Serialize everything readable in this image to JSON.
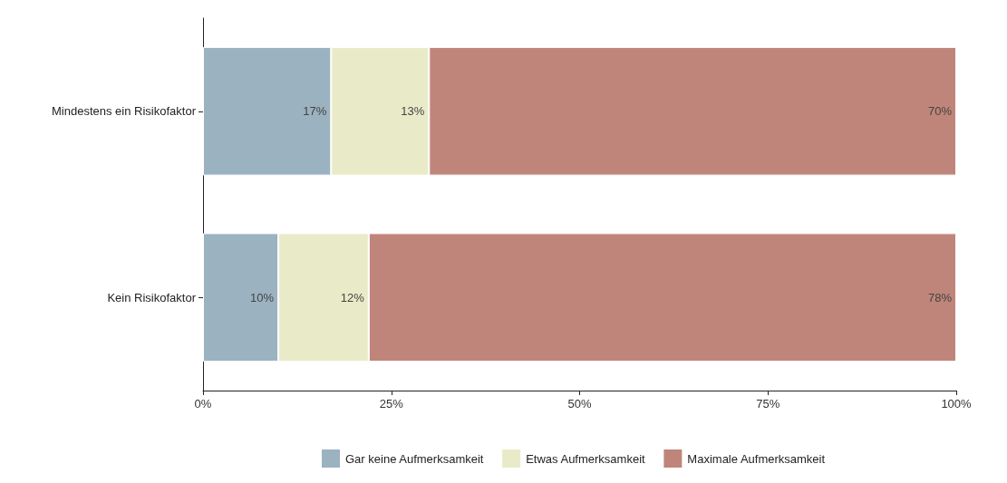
{
  "chart_data": {
    "type": "bar",
    "orientation": "horizontal",
    "stacked": true,
    "categories": [
      "Mindestens ein Risikofaktor",
      "Kein Risikofaktor"
    ],
    "series": [
      {
        "name": "Gar keine Aufmerksamkeit",
        "color": "#9bb2c0",
        "values": [
          17,
          10
        ],
        "value_labels": [
          "17%",
          "10%"
        ]
      },
      {
        "name": "Etwas Aufmerksamkeit",
        "color": "#e9ebc8",
        "values": [
          13,
          12
        ],
        "value_labels": [
          "13%",
          "12%"
        ]
      },
      {
        "name": "Maximale Aufmerksamkeit",
        "color": "#c0857a",
        "values": [
          70,
          78
        ],
        "value_labels": [
          "70%",
          "78%"
        ]
      }
    ],
    "xlim": [
      0,
      100
    ],
    "xticks": [
      {
        "value": 0,
        "label": "0%"
      },
      {
        "value": 25,
        "label": "25%"
      },
      {
        "value": 50,
        "label": "50%"
      },
      {
        "value": 75,
        "label": "75%"
      },
      {
        "value": 100,
        "label": "100%"
      }
    ],
    "grid": false,
    "legend": "bottom"
  }
}
